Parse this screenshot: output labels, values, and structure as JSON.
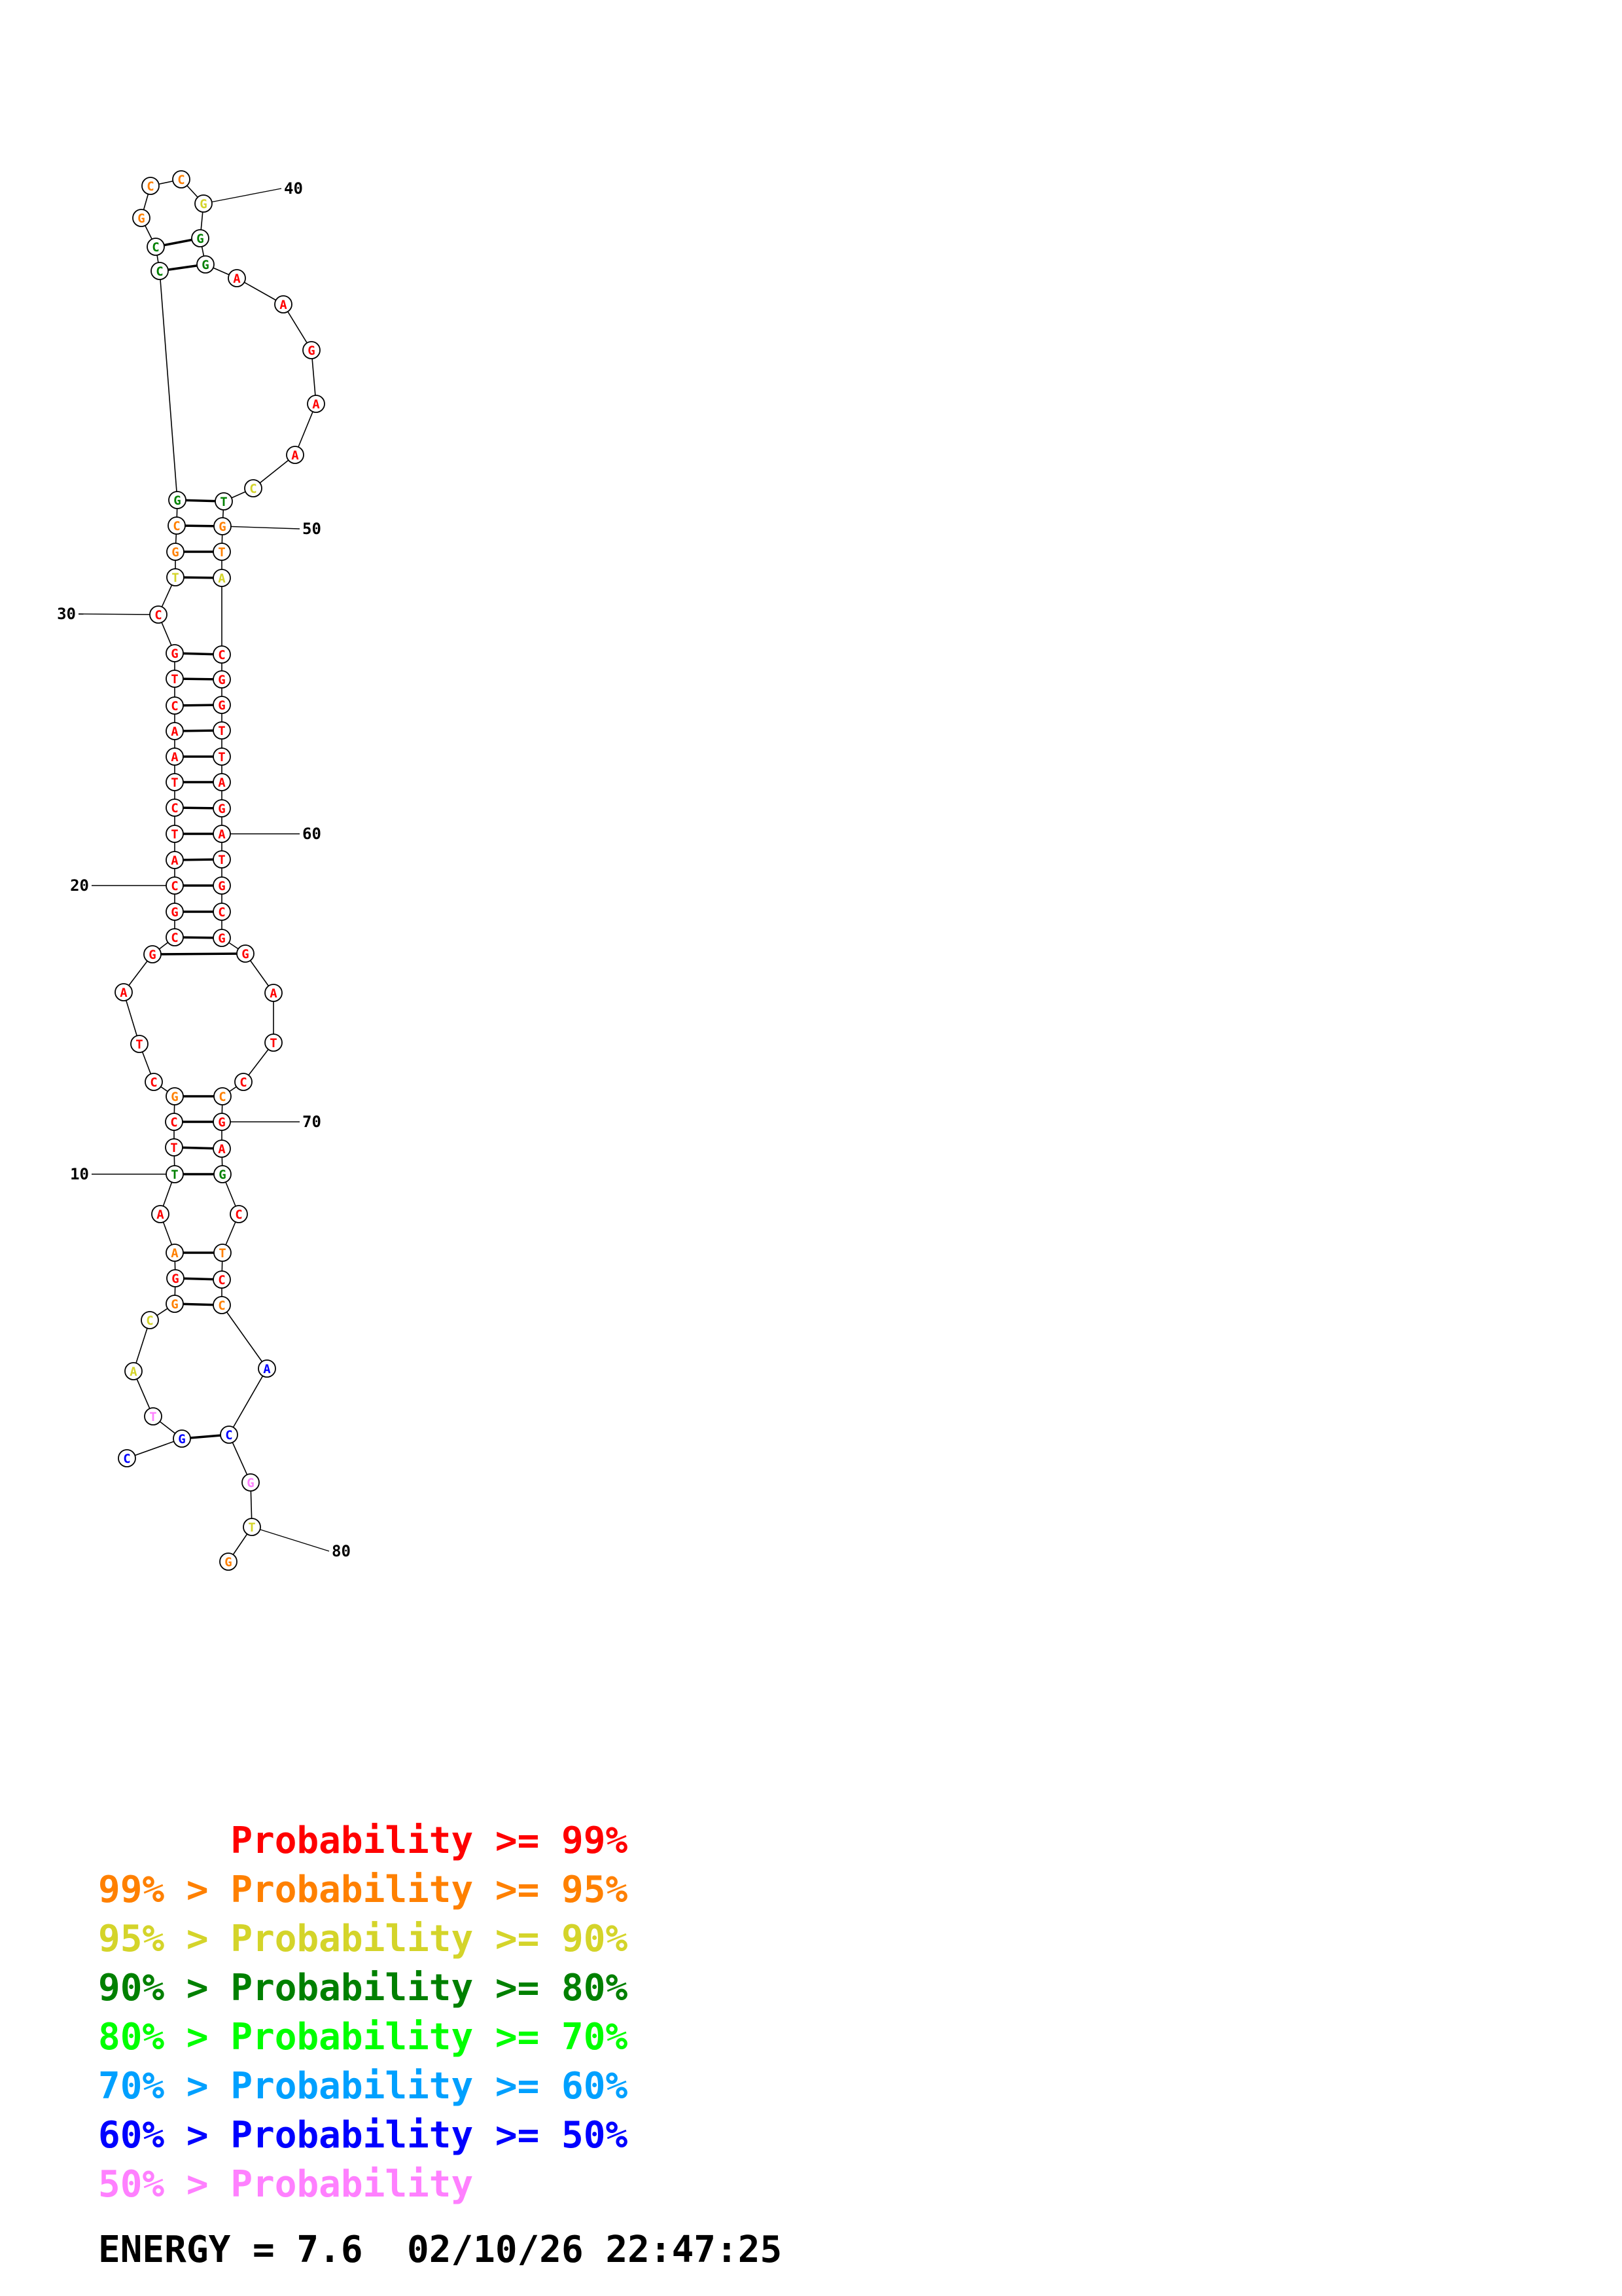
{
  "colors": {
    "p99": "#ff0000",
    "p95": "#ff8000",
    "p90": "#d4d42a",
    "p80": "#008000",
    "p70": "#00ff00",
    "p60": "#00a0ff",
    "p50": "#0000ff",
    "plow": "#ff80ff"
  },
  "sequence": [
    {
      "n": 1,
      "base": "C",
      "color": "p50"
    },
    {
      "n": 2,
      "base": "G",
      "color": "p50"
    },
    {
      "n": 3,
      "base": "T",
      "color": "plow"
    },
    {
      "n": 4,
      "base": "A",
      "color": "p90"
    },
    {
      "n": 5,
      "base": "C",
      "color": "p90"
    },
    {
      "n": 6,
      "base": "G",
      "color": "p95"
    },
    {
      "n": 7,
      "base": "G",
      "color": "p99"
    },
    {
      "n": 8,
      "base": "A",
      "color": "p95"
    },
    {
      "n": 9,
      "base": "A",
      "color": "p99"
    },
    {
      "n": 10,
      "base": "T",
      "color": "p80"
    },
    {
      "n": 11,
      "base": "T",
      "color": "p99"
    },
    {
      "n": 12,
      "base": "C",
      "color": "p99"
    },
    {
      "n": 13,
      "base": "G",
      "color": "p95"
    },
    {
      "n": 14,
      "base": "C",
      "color": "p99"
    },
    {
      "n": 15,
      "base": "T",
      "color": "p99"
    },
    {
      "n": 16,
      "base": "A",
      "color": "p99"
    },
    {
      "n": 17,
      "base": "G",
      "color": "p99"
    },
    {
      "n": 18,
      "base": "C",
      "color": "p99"
    },
    {
      "n": 19,
      "base": "G",
      "color": "p99"
    },
    {
      "n": 20,
      "base": "C",
      "color": "p99"
    },
    {
      "n": 21,
      "base": "A",
      "color": "p99"
    },
    {
      "n": 22,
      "base": "T",
      "color": "p99"
    },
    {
      "n": 23,
      "base": "C",
      "color": "p99"
    },
    {
      "n": 24,
      "base": "T",
      "color": "p99"
    },
    {
      "n": 25,
      "base": "A",
      "color": "p99"
    },
    {
      "n": 26,
      "base": "A",
      "color": "p99"
    },
    {
      "n": 27,
      "base": "C",
      "color": "p99"
    },
    {
      "n": 28,
      "base": "T",
      "color": "p99"
    },
    {
      "n": 29,
      "base": "G",
      "color": "p99"
    },
    {
      "n": 30,
      "base": "C",
      "color": "p99"
    },
    {
      "n": 31,
      "base": "T",
      "color": "p90"
    },
    {
      "n": 32,
      "base": "G",
      "color": "p95"
    },
    {
      "n": 33,
      "base": "C",
      "color": "p95"
    },
    {
      "n": 34,
      "base": "G",
      "color": "p80"
    },
    {
      "n": 35,
      "base": "C",
      "color": "p80"
    },
    {
      "n": 36,
      "base": "C",
      "color": "p80"
    },
    {
      "n": 37,
      "base": "G",
      "color": "p95"
    },
    {
      "n": 38,
      "base": "C",
      "color": "p95"
    },
    {
      "n": 39,
      "base": "C",
      "color": "p95"
    },
    {
      "n": 40,
      "base": "G",
      "color": "p90"
    },
    {
      "n": 41,
      "base": "G",
      "color": "p80"
    },
    {
      "n": 42,
      "base": "G",
      "color": "p80"
    },
    {
      "n": 43,
      "base": "A",
      "color": "p99"
    },
    {
      "n": 44,
      "base": "A",
      "color": "p99"
    },
    {
      "n": 45,
      "base": "G",
      "color": "p99"
    },
    {
      "n": 46,
      "base": "A",
      "color": "p99"
    },
    {
      "n": 47,
      "base": "A",
      "color": "p99"
    },
    {
      "n": 48,
      "base": "C",
      "color": "p90"
    },
    {
      "n": 49,
      "base": "T",
      "color": "p80"
    },
    {
      "n": 50,
      "base": "G",
      "color": "p95"
    },
    {
      "n": 51,
      "base": "T",
      "color": "p95"
    },
    {
      "n": 52,
      "base": "A",
      "color": "p90"
    },
    {
      "n": 53,
      "base": "C",
      "color": "p99"
    },
    {
      "n": 54,
      "base": "G",
      "color": "p99"
    },
    {
      "n": 55,
      "base": "G",
      "color": "p99"
    },
    {
      "n": 56,
      "base": "T",
      "color": "p99"
    },
    {
      "n": 57,
      "base": "T",
      "color": "p99"
    },
    {
      "n": 58,
      "base": "A",
      "color": "p99"
    },
    {
      "n": 59,
      "base": "G",
      "color": "p99"
    },
    {
      "n": 60,
      "base": "A",
      "color": "p99"
    },
    {
      "n": 61,
      "base": "T",
      "color": "p99"
    },
    {
      "n": 62,
      "base": "G",
      "color": "p99"
    },
    {
      "n": 63,
      "base": "C",
      "color": "p99"
    },
    {
      "n": 64,
      "base": "G",
      "color": "p99"
    },
    {
      "n": 65,
      "base": "G",
      "color": "p99"
    },
    {
      "n": 66,
      "base": "A",
      "color": "p99"
    },
    {
      "n": 67,
      "base": "T",
      "color": "p99"
    },
    {
      "n": 68,
      "base": "C",
      "color": "p99"
    },
    {
      "n": 69,
      "base": "C",
      "color": "p95"
    },
    {
      "n": 70,
      "base": "G",
      "color": "p99"
    },
    {
      "n": 71,
      "base": "A",
      "color": "p99"
    },
    {
      "n": 72,
      "base": "G",
      "color": "p80"
    },
    {
      "n": 73,
      "base": "C",
      "color": "p99"
    },
    {
      "n": 74,
      "base": "T",
      "color": "p95"
    },
    {
      "n": 75,
      "base": "C",
      "color": "p99"
    },
    {
      "n": 76,
      "base": "C",
      "color": "p95"
    },
    {
      "n": 77,
      "base": "A",
      "color": "p50"
    },
    {
      "n": 78,
      "base": "C",
      "color": "p50"
    },
    {
      "n": 79,
      "base": "G",
      "color": "plow"
    },
    {
      "n": 80,
      "base": "T",
      "color": "p90"
    },
    {
      "n": 81,
      "base": "G",
      "color": "p95"
    }
  ],
  "pairs": [
    [
      2,
      78
    ],
    [
      6,
      76
    ],
    [
      7,
      75
    ],
    [
      8,
      74
    ],
    [
      10,
      72
    ],
    [
      11,
      71
    ],
    [
      12,
      70
    ],
    [
      13,
      69
    ],
    [
      17,
      65
    ],
    [
      18,
      64
    ],
    [
      19,
      63
    ],
    [
      20,
      62
    ],
    [
      21,
      61
    ],
    [
      22,
      60
    ],
    [
      23,
      59
    ],
    [
      24,
      58
    ],
    [
      25,
      57
    ],
    [
      26,
      56
    ],
    [
      27,
      55
    ],
    [
      28,
      54
    ],
    [
      29,
      53
    ],
    [
      31,
      52
    ],
    [
      32,
      51
    ],
    [
      33,
      50
    ],
    [
      34,
      49
    ],
    [
      35,
      42
    ],
    [
      36,
      41
    ]
  ],
  "position_labels": [
    "10",
    "20",
    "30",
    "40",
    "50",
    "60",
    "70",
    "80"
  ],
  "legend": [
    {
      "lower": "",
      "sep": "",
      "main": "Probability >= 99%",
      "color": "p99"
    },
    {
      "lower": "99%",
      "sep": " > ",
      "main": "Probability >= 95%",
      "color": "p95"
    },
    {
      "lower": "95%",
      "sep": " > ",
      "main": "Probability >= 90%",
      "color": "p90"
    },
    {
      "lower": "90%",
      "sep": " > ",
      "main": "Probability >= 80%",
      "color": "p80"
    },
    {
      "lower": "80%",
      "sep": " > ",
      "main": "Probability >= 70%",
      "color": "p70"
    },
    {
      "lower": "70%",
      "sep": " > ",
      "main": "Probability >= 60%",
      "color": "p60"
    },
    {
      "lower": "60%",
      "sep": " > ",
      "main": "Probability >= 50%",
      "color": "p50"
    },
    {
      "lower": "50%",
      "sep": " > ",
      "main": "Probability",
      "color": "plow"
    }
  ],
  "energy_text": "ENERGY = 7.6  02/10/26 22:47:25"
}
